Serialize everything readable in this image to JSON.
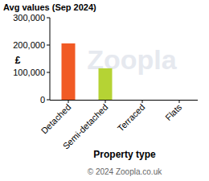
{
  "chart_data": {
    "type": "bar",
    "title": "Avg values (Sep 2024)",
    "x_label": "Property type",
    "y_label": "£",
    "watermark": "Zoopla",
    "source": "© 2024 Zoopla.co.uk",
    "categories": [
      "Detached",
      "Semi-detached",
      "Terraced",
      "Flats"
    ],
    "values": [
      206000,
      115000,
      null,
      null
    ],
    "colors": [
      "#f15a24",
      "#b5d334",
      null,
      null
    ],
    "ylim": [
      0,
      300000
    ],
    "yticks": [
      0,
      {
        "value": 100000,
        "label": "100,000"
      },
      {
        "value": 200000,
        "label": "200,000"
      },
      {
        "value": 300000,
        "label": "300,000"
      }
    ],
    "grid": false
  }
}
